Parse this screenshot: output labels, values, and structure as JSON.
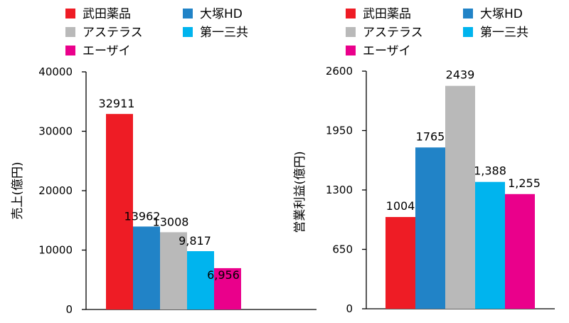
{
  "chart_data": [
    {
      "type": "bar",
      "ylabel": "売上(億円)",
      "ylim": [
        0,
        40000
      ],
      "yticks": [
        "0",
        "10000",
        "20000",
        "30000",
        "40000"
      ],
      "series": [
        {
          "name": "武田薬品",
          "value": 32911,
          "label": "32911",
          "color": "#ee1c25"
        },
        {
          "name": "大塚HD",
          "value": 13962,
          "label": "13962",
          "color": "#2183c7"
        },
        {
          "name": "アステラス",
          "value": 13008,
          "label": "13008",
          "color": "#b9b9b9"
        },
        {
          "name": "第一三共",
          "value": 9817,
          "label": "9,817",
          "color": "#00b4ee"
        },
        {
          "name": "エーザイ",
          "value": 6956,
          "label": "6,956",
          "color": "#ea008b"
        }
      ],
      "legend": [
        {
          "name": "武田薬品",
          "color": "#ee1c25"
        },
        {
          "name": "大塚HD",
          "color": "#2183c7"
        },
        {
          "name": "アステラス",
          "color": "#b9b9b9"
        },
        {
          "name": "第一三共",
          "color": "#00b4ee"
        },
        {
          "name": "エーザイ",
          "color": "#ea008b"
        }
      ]
    },
    {
      "type": "bar",
      "ylabel": "営業利益(億円)",
      "ylim": [
        0,
        2600
      ],
      "yticks": [
        "0",
        "650",
        "1300",
        "1950",
        "2600"
      ],
      "series": [
        {
          "name": "武田薬品",
          "value": 1004,
          "label": "1004",
          "color": "#ee1c25"
        },
        {
          "name": "大塚HD",
          "value": 1765,
          "label": "1765",
          "color": "#2183c7"
        },
        {
          "name": "アステラス",
          "value": 2439,
          "label": "2439",
          "color": "#b9b9b9"
        },
        {
          "name": "第一三共",
          "value": 1388,
          "label": "1,388",
          "color": "#00b4ee"
        },
        {
          "name": "エーザイ",
          "value": 1255,
          "label": "1,255",
          "color": "#ea008b"
        }
      ],
      "legend": [
        {
          "name": "武田薬品",
          "color": "#ee1c25"
        },
        {
          "name": "大塚HD",
          "color": "#2183c7"
        },
        {
          "name": "アステラス",
          "color": "#b9b9b9"
        },
        {
          "name": "第一三共",
          "color": "#00b4ee"
        },
        {
          "name": "エーザイ",
          "color": "#ea008b"
        }
      ]
    }
  ]
}
